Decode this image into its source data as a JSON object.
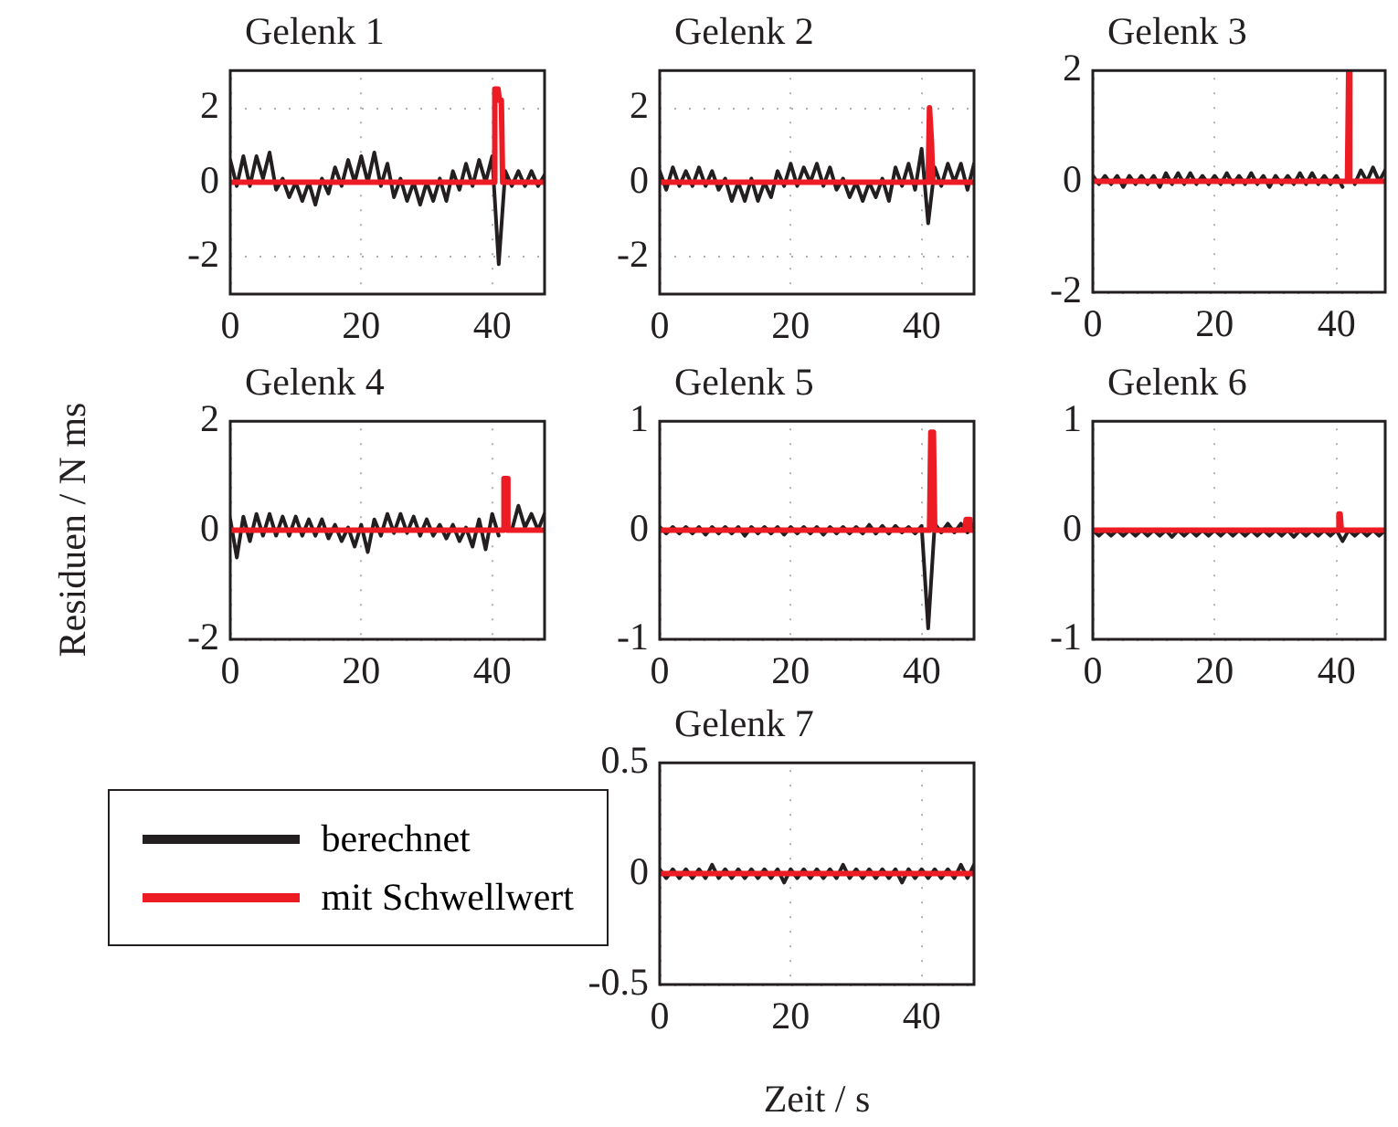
{
  "chart_data": [
    {
      "type": "line",
      "title": "Gelenk 1",
      "x": [
        0,
        1,
        2,
        3,
        4,
        5,
        6,
        7,
        8,
        9,
        10,
        11,
        12,
        13,
        14,
        15,
        16,
        17,
        18,
        19,
        20,
        21,
        22,
        23,
        24,
        25,
        26,
        27,
        28,
        29,
        30,
        31,
        32,
        33,
        34,
        35,
        36,
        37,
        38,
        39,
        40,
        41,
        42,
        43,
        44,
        45,
        46,
        47,
        48
      ],
      "xlim": [
        0,
        48
      ],
      "xticks": [
        0,
        20,
        40
      ],
      "ylim": [
        -3,
        3
      ],
      "yticks": [
        -2,
        0,
        2
      ],
      "grid": true,
      "marker": "none",
      "series": [
        {
          "color": "#231f20",
          "values": [
            0.6,
            -0.1,
            0.7,
            -0.1,
            0.7,
            0.1,
            0.8,
            -0.2,
            0.1,
            -0.4,
            0,
            -0.5,
            0,
            -0.6,
            0.1,
            -0.3,
            0.4,
            -0.1,
            0.6,
            0,
            0.7,
            0,
            0.8,
            -0.1,
            0.5,
            -0.4,
            0.1,
            -0.5,
            0,
            -0.6,
            0,
            -0.5,
            0.1,
            -0.5,
            0.3,
            -0.2,
            0.5,
            -0.1,
            0.6,
            0,
            0.7,
            -2.2,
            0.3,
            -0.1,
            0.3,
            -0.1,
            0.3,
            -0.1,
            0.2
          ]
        },
        {
          "color": "#ed1c24",
          "x": [
            0,
            40.2,
            40.4,
            40.9,
            41.1,
            41.4,
            41.6,
            48
          ],
          "values": [
            0,
            0,
            2.5,
            2.5,
            2.2,
            2.2,
            0,
            0
          ]
        }
      ]
    },
    {
      "type": "line",
      "title": "Gelenk 2",
      "x": [
        0,
        1,
        2,
        3,
        4,
        5,
        6,
        7,
        8,
        9,
        10,
        11,
        12,
        13,
        14,
        15,
        16,
        17,
        18,
        19,
        20,
        21,
        22,
        23,
        24,
        25,
        26,
        27,
        28,
        29,
        30,
        31,
        32,
        33,
        34,
        35,
        36,
        37,
        38,
        39,
        40,
        41,
        42,
        43,
        44,
        45,
        46,
        47,
        48
      ],
      "xlim": [
        0,
        48
      ],
      "xticks": [
        0,
        20,
        40
      ],
      "ylim": [
        -3,
        3
      ],
      "yticks": [
        -2,
        0,
        2
      ],
      "grid": true,
      "marker": "none",
      "series": [
        {
          "color": "#231f20",
          "values": [
            0.3,
            -0.2,
            0.4,
            -0.1,
            0.3,
            -0.1,
            0.4,
            -0.1,
            0.3,
            -0.2,
            0.1,
            -0.5,
            0,
            -0.5,
            0.1,
            -0.5,
            0,
            -0.4,
            0.3,
            -0.1,
            0.5,
            -0.1,
            0.4,
            0,
            0.5,
            -0.1,
            0.4,
            -0.2,
            0.1,
            -0.4,
            0,
            -0.5,
            0,
            -0.4,
            0.1,
            -0.5,
            0.4,
            -0.1,
            0.5,
            -0.2,
            0.9,
            -1.1,
            0.4,
            -0.1,
            0.5,
            0,
            0.5,
            -0.2,
            0.5
          ]
        },
        {
          "color": "#ed1c24",
          "x": [
            0,
            41,
            41.2,
            41.5,
            41.7,
            48
          ],
          "values": [
            0,
            0,
            2,
            1.1,
            0,
            0
          ]
        }
      ]
    },
    {
      "type": "line",
      "title": "Gelenk 3",
      "x": [
        0,
        1,
        2,
        3,
        4,
        5,
        6,
        7,
        8,
        9,
        10,
        11,
        12,
        13,
        14,
        15,
        16,
        17,
        18,
        19,
        20,
        21,
        22,
        23,
        24,
        25,
        26,
        27,
        28,
        29,
        30,
        31,
        32,
        33,
        34,
        35,
        36,
        37,
        38,
        39,
        40,
        41,
        42,
        43,
        44,
        45,
        46,
        47,
        48
      ],
      "xlim": [
        0,
        48
      ],
      "xticks": [
        0,
        20,
        40
      ],
      "ylim": [
        -2,
        2
      ],
      "yticks": [
        -2,
        0,
        2
      ],
      "grid": true,
      "marker": "none",
      "series": [
        {
          "color": "#231f20",
          "values": [
            0.1,
            -0.05,
            0.1,
            -0.05,
            0.1,
            -0.1,
            0.1,
            -0.05,
            0.1,
            -0.05,
            0.1,
            -0.1,
            0.15,
            -0.05,
            0.15,
            -0.05,
            0.15,
            -0.05,
            0.1,
            -0.05,
            0.1,
            -0.05,
            0.15,
            -0.05,
            0.1,
            -0.05,
            0.15,
            -0.05,
            0.1,
            -0.1,
            0.1,
            -0.05,
            0.1,
            -0.05,
            0.15,
            -0.05,
            0.15,
            -0.05,
            0.1,
            -0.05,
            0.1,
            -0.1,
            null,
            -0.05,
            0.2,
            0,
            0.25,
            0,
            0.2
          ]
        },
        {
          "color": "#ed1c24",
          "x": [
            0,
            41.8,
            42,
            42.2,
            48
          ],
          "values": [
            0,
            0,
            2,
            0,
            0
          ]
        }
      ]
    },
    {
      "type": "line",
      "title": "Gelenk 4",
      "ylabel": "Residuen / N ms",
      "x": [
        0,
        1,
        2,
        3,
        4,
        5,
        6,
        7,
        8,
        9,
        10,
        11,
        12,
        13,
        14,
        15,
        16,
        17,
        18,
        19,
        20,
        21,
        22,
        23,
        24,
        25,
        26,
        27,
        28,
        29,
        30,
        31,
        32,
        33,
        34,
        35,
        36,
        37,
        38,
        39,
        40,
        41,
        42,
        43,
        44,
        45,
        46,
        47,
        48
      ],
      "xlim": [
        0,
        48
      ],
      "xticks": [
        0,
        20,
        40
      ],
      "ylim": [
        -2,
        2
      ],
      "yticks": [
        -2,
        0,
        2
      ],
      "grid": true,
      "marker": "none",
      "series": [
        {
          "color": "#231f20",
          "values": [
            0.2,
            -0.5,
            0.25,
            -0.2,
            0.3,
            -0.1,
            0.3,
            -0.1,
            0.25,
            -0.1,
            0.25,
            -0.1,
            0.2,
            -0.1,
            0.2,
            -0.15,
            0.1,
            -0.2,
            0.05,
            -0.3,
            0.1,
            -0.4,
            0.2,
            -0.1,
            0.3,
            -0.05,
            0.3,
            -0.05,
            0.25,
            -0.1,
            0.2,
            -0.1,
            0.1,
            -0.15,
            0.1,
            -0.2,
            0.05,
            -0.3,
            0.2,
            -0.35,
            0.3,
            -0.1,
            null,
            0,
            0.45,
            0.05,
            0.3,
            0,
            0.3
          ]
        },
        {
          "color": "#ed1c24",
          "x": [
            0,
            41.6,
            41.8,
            42.2,
            42.4,
            48
          ],
          "values": [
            0,
            0,
            0.95,
            0.95,
            0,
            0
          ]
        }
      ]
    },
    {
      "type": "line",
      "title": "Gelenk 5",
      "x": [
        0,
        1,
        2,
        3,
        4,
        5,
        6,
        7,
        8,
        9,
        10,
        11,
        12,
        13,
        14,
        15,
        16,
        17,
        18,
        19,
        20,
        21,
        22,
        23,
        24,
        25,
        26,
        27,
        28,
        29,
        30,
        31,
        32,
        33,
        34,
        35,
        36,
        37,
        38,
        39,
        40,
        41,
        42,
        43,
        44,
        45,
        46,
        47,
        48
      ],
      "xlim": [
        0,
        48
      ],
      "xticks": [
        0,
        20,
        40
      ],
      "ylim": [
        -1,
        1
      ],
      "yticks": [
        -1,
        0,
        1
      ],
      "grid": true,
      "marker": "none",
      "series": [
        {
          "color": "#231f20",
          "values": [
            0.03,
            -0.03,
            0.03,
            -0.03,
            0.03,
            -0.03,
            0.03,
            -0.04,
            0.03,
            -0.03,
            0.03,
            -0.03,
            0.03,
            -0.05,
            0.03,
            -0.03,
            0.03,
            -0.03,
            0.03,
            -0.04,
            0.03,
            -0.03,
            0.03,
            -0.03,
            0.03,
            -0.04,
            0.03,
            -0.03,
            0.03,
            -0.03,
            0.03,
            -0.03,
            0.05,
            -0.03,
            0.04,
            -0.03,
            0.04,
            -0.02,
            0.03,
            -0.03,
            0.04,
            -0.9,
            0.06,
            -0.02,
            0.06,
            -0.02,
            0.06,
            -0.02,
            0.06
          ]
        },
        {
          "color": "#ed1c24",
          "x": [
            0,
            41.2,
            41.4,
            41.8,
            42,
            46.6,
            46.8,
            47.2,
            47.4,
            48
          ],
          "values": [
            0,
            0,
            0.9,
            0.9,
            0,
            0,
            0.1,
            0.1,
            0,
            0
          ]
        }
      ]
    },
    {
      "type": "line",
      "title": "Gelenk 6",
      "x": [
        0,
        1,
        2,
        3,
        4,
        5,
        6,
        7,
        8,
        9,
        10,
        11,
        12,
        13,
        14,
        15,
        16,
        17,
        18,
        19,
        20,
        21,
        22,
        23,
        24,
        25,
        26,
        27,
        28,
        29,
        30,
        31,
        32,
        33,
        34,
        35,
        36,
        37,
        38,
        39,
        40,
        41,
        42,
        43,
        44,
        45,
        46,
        47,
        48
      ],
      "xlim": [
        0,
        48
      ],
      "xticks": [
        0,
        20,
        40
      ],
      "ylim": [
        -1,
        1
      ],
      "yticks": [
        -1,
        0,
        1
      ],
      "grid": true,
      "marker": "none",
      "series": [
        {
          "color": "#231f20",
          "values": [
            0,
            -0.05,
            0,
            -0.05,
            0,
            -0.05,
            0,
            -0.05,
            0,
            -0.05,
            0,
            -0.05,
            0,
            -0.06,
            0,
            -0.05,
            0,
            -0.05,
            0,
            -0.05,
            0,
            -0.05,
            0,
            -0.05,
            0,
            -0.05,
            0,
            -0.05,
            0,
            -0.05,
            0,
            -0.05,
            0,
            -0.06,
            0,
            -0.05,
            0,
            -0.05,
            0,
            -0.05,
            0,
            -0.1,
            0,
            -0.05,
            0,
            -0.05,
            0,
            -0.05,
            0
          ]
        },
        {
          "color": "#ed1c24",
          "x": [
            0,
            40.2,
            40.4,
            40.6,
            40.8,
            48
          ],
          "values": [
            0,
            0,
            0.15,
            0.15,
            0,
            0
          ]
        }
      ]
    },
    {
      "type": "line",
      "title": "Gelenk 7",
      "xlabel": "Zeit / s",
      "legend": "left",
      "x": [
        0,
        1,
        2,
        3,
        4,
        5,
        6,
        7,
        8,
        9,
        10,
        11,
        12,
        13,
        14,
        15,
        16,
        17,
        18,
        19,
        20,
        21,
        22,
        23,
        24,
        25,
        26,
        27,
        28,
        29,
        30,
        31,
        32,
        33,
        34,
        35,
        36,
        37,
        38,
        39,
        40,
        41,
        42,
        43,
        44,
        45,
        46,
        47,
        48
      ],
      "xlim": [
        0,
        48
      ],
      "xticks": [
        0,
        20,
        40
      ],
      "ylim": [
        -0.5,
        0.5
      ],
      "yticks": [
        -0.5,
        0,
        0.5
      ],
      "grid": true,
      "marker": "none",
      "series": [
        {
          "name": "berechnet",
          "color": "#231f20",
          "values": [
            0.02,
            -0.02,
            0.02,
            -0.02,
            0.02,
            -0.02,
            0.02,
            -0.02,
            0.04,
            -0.02,
            0.02,
            -0.02,
            0.02,
            -0.02,
            0.02,
            -0.02,
            0.02,
            -0.02,
            0.02,
            -0.04,
            0.02,
            -0.02,
            0.02,
            -0.02,
            0.02,
            -0.02,
            0.02,
            -0.02,
            0.04,
            -0.02,
            0.02,
            -0.02,
            0.02,
            -0.02,
            0.02,
            -0.02,
            0.02,
            -0.04,
            0.02,
            -0.02,
            0.02,
            -0.02,
            0.02,
            -0.02,
            0.02,
            -0.02,
            0.04,
            -0.02,
            0.04
          ]
        },
        {
          "name": "mit Schwellwert",
          "color": "#ed1c24",
          "x": [
            0,
            48
          ],
          "values": [
            0,
            0
          ]
        }
      ]
    }
  ]
}
